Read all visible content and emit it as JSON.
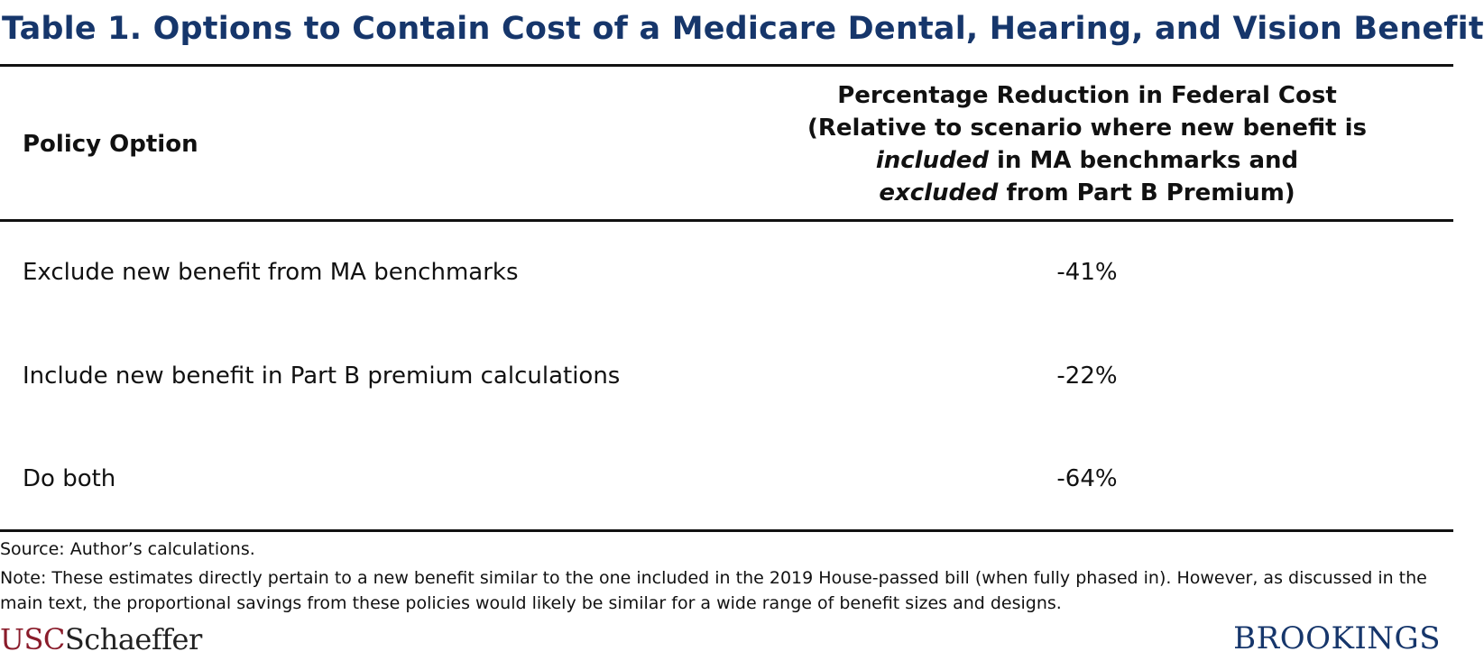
{
  "title": "Table 1. Options to Contain Cost of a Medicare Dental, Hearing, and Vision Benefit",
  "header": {
    "left": "Policy Option",
    "right_line1": "Percentage Reduction in Federal Cost",
    "right_line2": "(Relative to scenario where new benefit is",
    "right_line3_italic": "included",
    "right_line3_rest": " in MA benchmarks and",
    "right_line4_italic": "excluded",
    "right_line4_rest": " from Part B Premium)"
  },
  "rows": [
    {
      "label": "Exclude new benefit from MA benchmarks",
      "value": "-41%"
    },
    {
      "label": "Include new benefit in Part B premium calculations",
      "value": "-22%"
    },
    {
      "label": "Do both",
      "value": "-64%"
    }
  ],
  "source": "Source: Author’s calculations.",
  "note": "Note: These estimates directly pertain to a new benefit similar to the one included in the 2019 House-passed bill (when fully phased in). However, as discussed in the main text, the proportional savings from these policies would likely be similar for a wide range of benefit sizes and designs.",
  "logos": {
    "usc": "USC",
    "schaeffer": "Schaeffer",
    "brookings": "BROOKINGS"
  }
}
